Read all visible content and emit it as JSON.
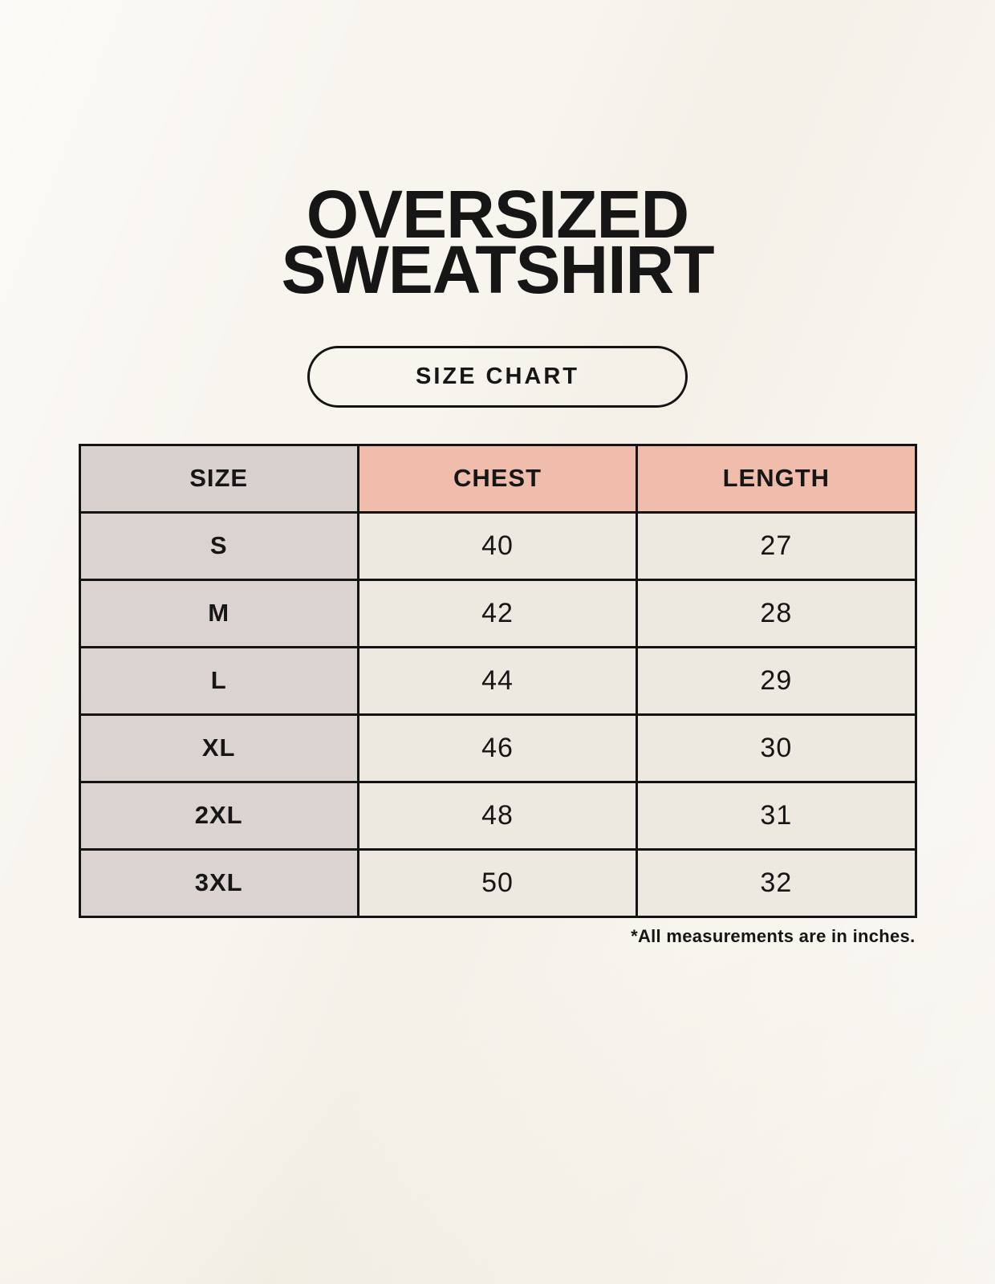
{
  "header": {
    "title_line1": "OVERSIZED",
    "title_line2": "SWEATSHIRT",
    "badge_label": "SIZE CHART"
  },
  "chart_data": {
    "type": "table",
    "title": "OVERSIZED SWEATSHIRT",
    "subtitle": "SIZE CHART",
    "columns": [
      "SIZE",
      "CHEST",
      "LENGTH"
    ],
    "rows": [
      [
        "S",
        40,
        27
      ],
      [
        "M",
        42,
        28
      ],
      [
        "L",
        44,
        29
      ],
      [
        "XL",
        46,
        30
      ],
      [
        "2XL",
        48,
        31
      ],
      [
        "3XL",
        50,
        32
      ]
    ],
    "footnote": "*All measurements are in inches.",
    "units": "inches"
  },
  "colors": {
    "page_background": "#F6F2EA",
    "header_size_bg": "#D8D1CD",
    "header_measurement_bg": "#F0BDAC",
    "row_label_bg": "#DAD3CF",
    "row_value_bg": "#EDE8E0",
    "table_border": "#141414",
    "text": "#161616"
  }
}
